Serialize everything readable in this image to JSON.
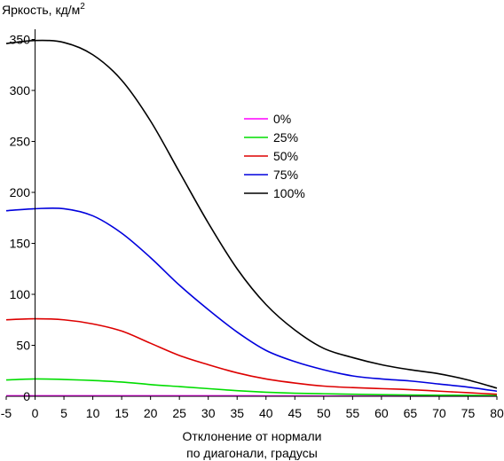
{
  "chart_data": {
    "type": "line",
    "title": "",
    "ylabel": "Яркость, кд/м",
    "ylabel_sup": "2",
    "xlabel_line1": "Отклонение от нормали",
    "xlabel_line2": "по диагонали, градусы",
    "xlim": [
      -5,
      80
    ],
    "ylim": [
      0,
      360
    ],
    "x_ticks": [
      -5,
      0,
      5,
      10,
      15,
      20,
      25,
      30,
      35,
      40,
      45,
      50,
      55,
      60,
      65,
      70,
      75,
      80
    ],
    "y_ticks": [
      0,
      50,
      100,
      150,
      200,
      250,
      300,
      350
    ],
    "grid": false,
    "legend_position": "center-right",
    "x": [
      -5,
      0,
      5,
      10,
      15,
      20,
      25,
      30,
      35,
      40,
      45,
      50,
      55,
      60,
      65,
      70,
      75,
      80
    ],
    "series": [
      {
        "name": "0%",
        "color": "#ff00ff",
        "values": [
          0.5,
          0.5,
          0.5,
          0.5,
          0.5,
          0.5,
          0.5,
          0.5,
          0.5,
          0.4,
          0.4,
          0.3,
          0.3,
          0.3,
          0.2,
          0.2,
          0.2,
          0.2
        ]
      },
      {
        "name": "25%",
        "color": "#00dd00",
        "values": [
          16,
          17,
          16.5,
          15.5,
          14,
          11.5,
          9.5,
          7.5,
          5.5,
          4,
          3,
          2.5,
          2,
          1.6,
          1.3,
          1.1,
          0.9,
          0.8
        ]
      },
      {
        "name": "50%",
        "color": "#dd0000",
        "values": [
          75,
          76,
          75,
          71,
          64,
          52,
          40,
          31,
          23,
          17,
          13,
          10,
          8.5,
          7.5,
          6.5,
          5,
          3.5,
          2
        ]
      },
      {
        "name": "75%",
        "color": "#0000dd",
        "values": [
          182,
          184,
          184,
          177,
          160,
          136,
          109,
          85,
          63,
          45,
          34,
          26,
          20,
          17,
          15,
          12,
          9,
          5
        ]
      },
      {
        "name": "100%",
        "color": "#000000",
        "values": [
          346,
          349,
          347,
          335,
          310,
          270,
          220,
          170,
          125,
          90,
          65,
          47,
          38,
          31,
          26,
          22,
          16,
          8
        ]
      }
    ]
  }
}
